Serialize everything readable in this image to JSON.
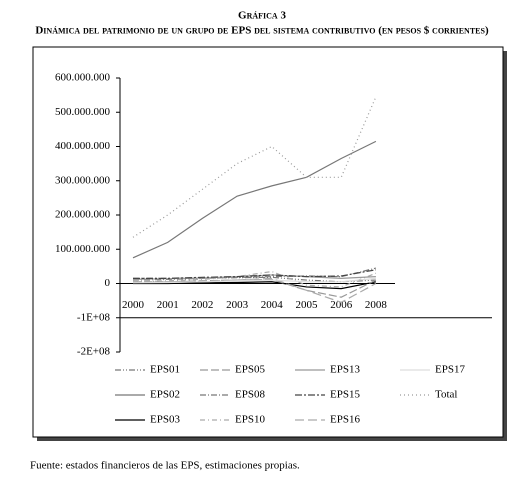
{
  "chart_data": {
    "type": "line",
    "title": "Gráfica 3",
    "subtitle": "Dinámica del patrimonio de un grupo de EPS del sistema contributivo (en pesos $ corrientes)",
    "source": "Fuente: estados financieros de las EPS, estimaciones propias.",
    "categories": [
      "2000",
      "2001",
      "2002",
      "2003",
      "2004",
      "2005",
      "2006",
      "2008"
    ],
    "ylim": [
      -200000000,
      600000000
    ],
    "yticks": [
      {
        "value": 600000000,
        "label": "600.000.000"
      },
      {
        "value": 500000000,
        "label": "500.000.000"
      },
      {
        "value": 400000000,
        "label": "400.000.000"
      },
      {
        "value": 300000000,
        "label": "300.000.000"
      },
      {
        "value": 200000000,
        "label": "200.000.000"
      },
      {
        "value": 100000000,
        "label": "100.000.000"
      },
      0,
      {
        "value": -100000000,
        "label": "-1E+08"
      },
      {
        "value": -200000000,
        "label": "-2E+08"
      }
    ],
    "series": [
      {
        "name": "EPS01",
        "color": "#777777",
        "dash": "6 2 1 2 1 2",
        "values": [
          15000000,
          15000000,
          16000000,
          17000000,
          18000000,
          10000000,
          5000000,
          10000000
        ]
      },
      {
        "name": "EPS02",
        "color": "#777777",
        "dash": "none",
        "values": [
          75000000,
          120000000,
          190000000,
          255000000,
          285000000,
          310000000,
          365000000,
          415000000
        ]
      },
      {
        "name": "EPS03",
        "color": "#000000",
        "dash": "none",
        "values": [
          0,
          0,
          2000000,
          3000000,
          5000000,
          -10000000,
          -15000000,
          5000000
        ]
      },
      {
        "name": "EPS05",
        "color": "#999999",
        "dash": "8 3",
        "values": [
          5000000,
          5000000,
          8000000,
          10000000,
          12000000,
          -20000000,
          -40000000,
          10000000
        ]
      },
      {
        "name": "EPS08",
        "color": "#777777",
        "dash": "6 2 1 2",
        "values": [
          10000000,
          12000000,
          15000000,
          18000000,
          20000000,
          22000000,
          20000000,
          45000000
        ]
      },
      {
        "name": "EPS10",
        "color": "#aaaaaa",
        "dash": "5 3 1 3",
        "values": [
          5000000,
          8000000,
          12000000,
          20000000,
          35000000,
          -5000000,
          -10000000,
          30000000
        ]
      },
      {
        "name": "EPS13",
        "color": "#999999",
        "dash": "none",
        "values": [
          12000000,
          14000000,
          16000000,
          20000000,
          25000000,
          20000000,
          15000000,
          20000000
        ]
      },
      {
        "name": "EPS15",
        "color": "#444444",
        "dash": "7 2 2 2",
        "values": [
          15000000,
          15000000,
          18000000,
          20000000,
          25000000,
          20000000,
          22000000,
          40000000
        ]
      },
      {
        "name": "EPS16",
        "color": "#aaaaaa",
        "dash": "9 4",
        "values": [
          3000000,
          5000000,
          7000000,
          10000000,
          15000000,
          -20000000,
          -55000000,
          0
        ]
      },
      {
        "name": "EPS17",
        "color": "#dddddd",
        "dash": "none",
        "values": [
          2000000,
          3000000,
          5000000,
          8000000,
          10000000,
          5000000,
          5000000,
          15000000
        ]
      },
      {
        "name": "Total",
        "color": "#999999",
        "dash": "1 3",
        "values": [
          135000000,
          200000000,
          275000000,
          350000000,
          400000000,
          310000000,
          310000000,
          545000000
        ]
      }
    ]
  }
}
